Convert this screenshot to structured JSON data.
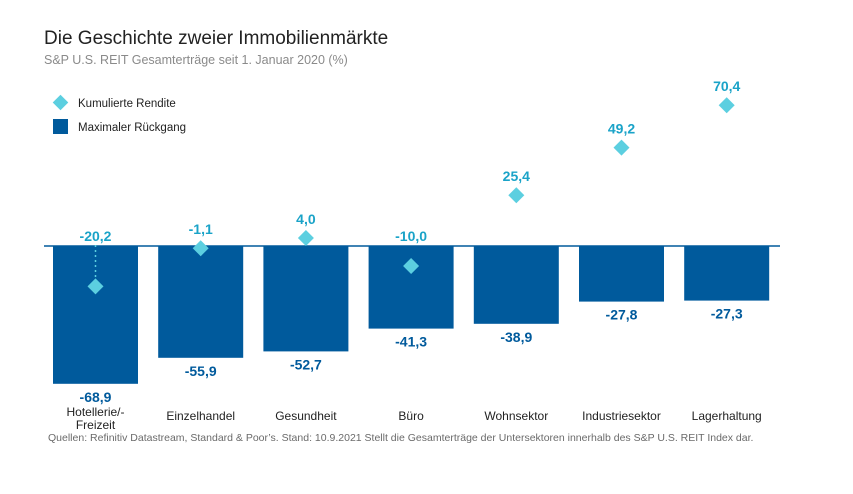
{
  "title": "Die Geschichte zweier Immobilienmärkte",
  "subtitle": "S&P U.S. REIT Gesamterträge seit 1. Januar 2020 (%)",
  "source": "Quellen: Refinitiv Datastream, Standard & Poor’s. Stand: 10.9.2021 Stellt die Gesamterträge der Untersektoren innerhalb des S&P U.S. REIT Index dar.",
  "colors": {
    "bar": "#005a9c",
    "diamond": "#5ccfe0",
    "axis": "#005a9c",
    "diamond_label": "#1aa3c8",
    "bar_label": "#005a9c"
  },
  "chart_data": {
    "type": "bar",
    "title": "Die Geschichte zweier Immobilienmärkte",
    "subtitle": "S&P U.S. REIT Gesamterträge seit 1. Januar 2020 (%)",
    "categories": [
      "Hotellerie/-\nFreizeit",
      "Einzelhandel",
      "Gesundheit",
      "Büro",
      "Wohnsektor",
      "Industriesektor",
      "Lagerhaltung"
    ],
    "series": [
      {
        "name": "Kumulierte Rendite",
        "marker": "diamond",
        "values": [
          -20.2,
          -1.1,
          4.0,
          -10.0,
          25.4,
          49.2,
          70.4
        ],
        "labels": [
          "-20,2",
          "-1,1",
          "4,0",
          "-10,0",
          "25,4",
          "49,2",
          "70,4"
        ]
      },
      {
        "name": "Maximaler Rückgang",
        "marker": "bar",
        "values": [
          -68.9,
          -55.9,
          -52.7,
          -41.3,
          -38.9,
          -27.8,
          -27.3
        ],
        "labels": [
          "-68,9",
          "-55,9",
          "-52,7",
          "-41,3",
          "-38,9",
          "-27,8",
          "-27,3"
        ]
      }
    ],
    "legend_position": "top-left",
    "grid": false
  }
}
